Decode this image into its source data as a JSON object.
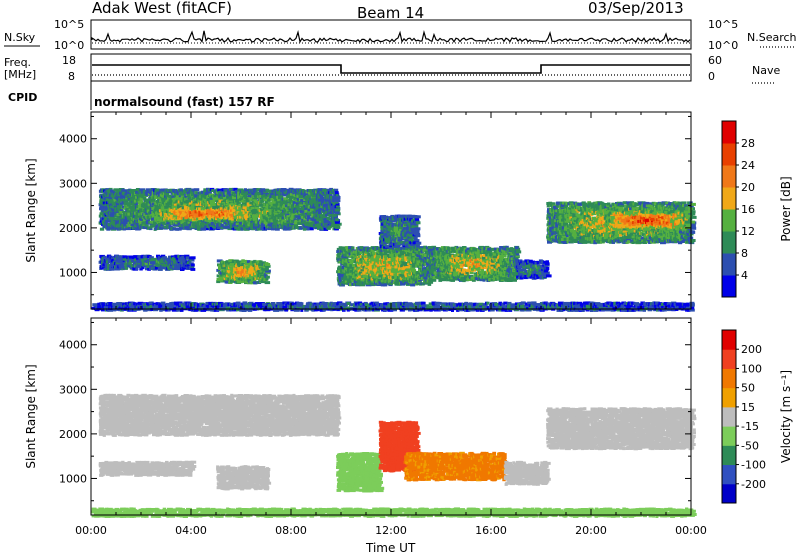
{
  "header": {
    "station": "Adak West (fitACF)",
    "beam": "Beam 14",
    "date": "03/Sep/2013"
  },
  "noise_panel": {
    "left_label": "N.Sky",
    "right_label": "N.Search",
    "left_ticks": [
      "10^5",
      "10^0"
    ],
    "right_ticks": [
      "10^5",
      "10^0"
    ]
  },
  "freq_panel": {
    "left_label_line1": "Freq.",
    "left_label_line2": "[MHz]",
    "right_label": "Nave",
    "left_ticks": [
      "18",
      "8"
    ],
    "right_ticks": [
      "60",
      "0"
    ]
  },
  "cpid_panel": {
    "label": "CPID",
    "text": "normalsound (fast) 157 RF"
  },
  "colors": {
    "power": [
      "#0000e8",
      "#2c4fb0",
      "#2e8b57",
      "#55b040",
      "#f0a818",
      "#f07818",
      "#e84000",
      "#e00000"
    ],
    "velocity": [
      "#e00000",
      "#f04020",
      "#f07800",
      "#f0a000",
      "#bdbdbd",
      "#7ccd5a",
      "#2e8b57",
      "#3050c0",
      "#0000c8"
    ]
  },
  "chart_data": [
    {
      "type": "heatmap",
      "title": "",
      "xlabel": "Time UT",
      "ylabel": "Slant Range [km]",
      "x_ticks": [
        "00:00",
        "04:00",
        "08:00",
        "12:00",
        "16:00",
        "20:00",
        "00:00"
      ],
      "xlim_hours": [
        0,
        24
      ],
      "y_ticks": [
        "1000",
        "2000",
        "3000",
        "4000"
      ],
      "ylim_km": [
        180,
        4600
      ],
      "colorbar": {
        "label": "Power [dB]",
        "ticks": [
          "4",
          "8",
          "12",
          "16",
          "20",
          "24",
          "28"
        ],
        "range": [
          0,
          32
        ]
      },
      "regions": [
        {
          "t0": 0.3,
          "t1": 9.8,
          "r0": 2000,
          "r1": 2900,
          "level": 0.45
        },
        {
          "t0": 2.5,
          "t1": 6.5,
          "r0": 2200,
          "r1": 2500,
          "level": 0.75
        },
        {
          "t0": 5.0,
          "t1": 7.0,
          "r0": 800,
          "r1": 1300,
          "level": 0.6
        },
        {
          "t0": 0.3,
          "t1": 4.0,
          "r0": 1100,
          "r1": 1400,
          "level": 0.3
        },
        {
          "t0": 9.8,
          "t1": 13.5,
          "r0": 750,
          "r1": 1600,
          "level": 0.55
        },
        {
          "t0": 11.5,
          "t1": 13.0,
          "r0": 1600,
          "r1": 2300,
          "level": 0.35
        },
        {
          "t0": 13.5,
          "t1": 17.0,
          "r0": 850,
          "r1": 1600,
          "level": 0.55
        },
        {
          "t0": 17.0,
          "t1": 18.2,
          "r0": 900,
          "r1": 1300,
          "level": 0.3
        },
        {
          "t0": 18.2,
          "t1": 24.0,
          "r0": 1700,
          "r1": 2600,
          "level": 0.55
        },
        {
          "t0": 20.5,
          "t1": 23.8,
          "r0": 2000,
          "r1": 2400,
          "level": 0.8
        },
        {
          "t0": 0.0,
          "t1": 24.0,
          "r0": 180,
          "r1": 350,
          "level": 0.25
        }
      ]
    },
    {
      "type": "heatmap",
      "title": "",
      "xlabel": "Time UT",
      "ylabel": "Slant Range [km]",
      "x_ticks": [
        "00:00",
        "04:00",
        "08:00",
        "12:00",
        "16:00",
        "20:00",
        "00:00"
      ],
      "xlim_hours": [
        0,
        24
      ],
      "y_ticks": [
        "1000",
        "2000",
        "3000",
        "4000"
      ],
      "ylim_km": [
        180,
        4600
      ],
      "colorbar": {
        "label": "Velocity [m s⁻¹]",
        "ticks": [
          "200",
          "100",
          "50",
          "15",
          "-15",
          "-50",
          "-100",
          "-200"
        ],
        "range": [
          -250,
          250
        ]
      },
      "regions": [
        {
          "t0": 0.3,
          "t1": 9.8,
          "r0": 2000,
          "r1": 2900,
          "velocity": 0
        },
        {
          "t0": 5.0,
          "t1": 7.0,
          "r0": 800,
          "r1": 1300,
          "velocity": 0
        },
        {
          "t0": 0.3,
          "t1": 4.0,
          "r0": 1100,
          "r1": 1400,
          "velocity": 0
        },
        {
          "t0": 9.8,
          "t1": 11.5,
          "r0": 750,
          "r1": 1600,
          "velocity": 30
        },
        {
          "t0": 11.5,
          "t1": 13.0,
          "r0": 1200,
          "r1": 2300,
          "velocity": -150
        },
        {
          "t0": 12.5,
          "t1": 16.5,
          "r0": 1000,
          "r1": 1600,
          "velocity": -60
        },
        {
          "t0": 16.5,
          "t1": 18.2,
          "r0": 900,
          "r1": 1400,
          "velocity": 0
        },
        {
          "t0": 18.2,
          "t1": 24.0,
          "r0": 1700,
          "r1": 2600,
          "velocity": 0
        },
        {
          "t0": 0.0,
          "t1": 24.0,
          "r0": 180,
          "r1": 350,
          "velocity": 30
        }
      ]
    }
  ]
}
